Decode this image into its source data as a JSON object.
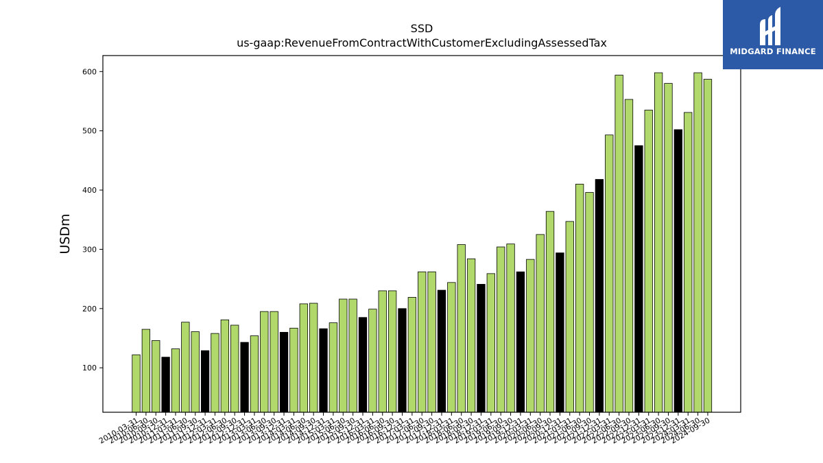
{
  "chart_data": {
    "type": "bar",
    "title": "SSD",
    "subtitle": "us-gaap:RevenueFromContractWithCustomerExcludingAssessedTax",
    "xlabel": "",
    "ylabel": "USDm",
    "ylim": [
      25,
      627
    ],
    "yticks": [
      100,
      200,
      300,
      400,
      500,
      600
    ],
    "grid": false,
    "colors": {
      "quarter": "#b0d86a",
      "fiscal_q4": "#000000",
      "edge": "#000000"
    },
    "categories": [
      "2010-03-31",
      "2010-06-30",
      "2010-09-30",
      "2010-12-31",
      "2011-03-31",
      "2011-06-30",
      "2011-09-30",
      "2011-12-31",
      "2012-03-31",
      "2012-06-30",
      "2012-09-30",
      "2012-12-31",
      "2013-03-31",
      "2013-06-30",
      "2013-09-30",
      "2013-12-31",
      "2014-03-31",
      "2014-06-30",
      "2014-09-30",
      "2014-12-31",
      "2015-03-31",
      "2015-06-30",
      "2015-09-30",
      "2015-12-31",
      "2016-03-31",
      "2016-06-30",
      "2016-09-30",
      "2016-12-31",
      "2017-03-31",
      "2017-06-30",
      "2017-09-30",
      "2017-12-31",
      "2018-03-31",
      "2018-06-30",
      "2018-09-30",
      "2018-12-31",
      "2019-03-31",
      "2019-06-30",
      "2019-09-30",
      "2019-12-31",
      "2020-03-31",
      "2020-06-30",
      "2020-09-30",
      "2020-12-31",
      "2021-03-31",
      "2021-06-30",
      "2021-09-30",
      "2021-12-31",
      "2022-03-31",
      "2022-06-30",
      "2022-09-30",
      "2022-12-31",
      "2023-03-31",
      "2023-06-30",
      "2023-09-30",
      "2023-12-31",
      "2024-03-31",
      "2024-06-30",
      "2024-09-30"
    ],
    "values": [
      122,
      165,
      146,
      118,
      132,
      177,
      161,
      129,
      158,
      181,
      172,
      143,
      154,
      195,
      195,
      160,
      167,
      208,
      209,
      166,
      176,
      216,
      216,
      185,
      199,
      230,
      230,
      200,
      219,
      262,
      262,
      231,
      244,
      308,
      284,
      241,
      259,
      304,
      309,
      262,
      283,
      325,
      364,
      294,
      347,
      410,
      396,
      418,
      493,
      594,
      553,
      475,
      535,
      598,
      580,
      502,
      531,
      598,
      587
    ],
    "highlight": [
      false,
      false,
      false,
      true,
      false,
      false,
      false,
      true,
      false,
      false,
      false,
      true,
      false,
      false,
      false,
      true,
      false,
      false,
      false,
      true,
      false,
      false,
      false,
      true,
      false,
      false,
      false,
      true,
      false,
      false,
      false,
      true,
      false,
      false,
      false,
      true,
      false,
      false,
      false,
      true,
      false,
      false,
      false,
      true,
      false,
      false,
      false,
      true,
      false,
      false,
      false,
      true,
      false,
      false,
      false,
      true,
      false,
      false,
      false
    ]
  },
  "brand": {
    "name": "MIDGARD FINANCE",
    "background": "#2c5aa6",
    "logo_icon": "midgard-logo-icon"
  }
}
